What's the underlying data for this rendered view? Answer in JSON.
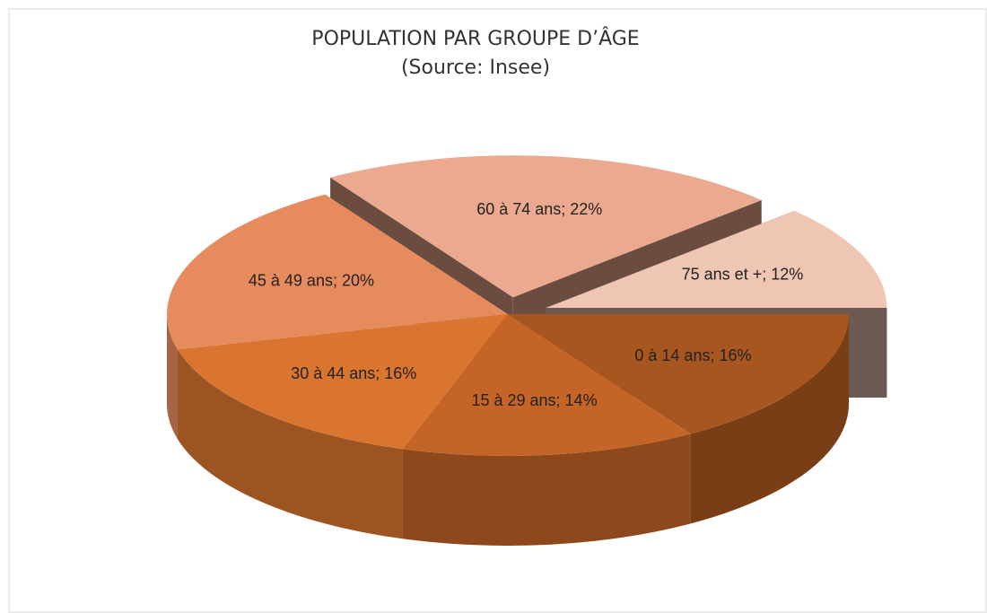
{
  "chart_data": {
    "type": "pie3d",
    "title": "POPULATION PAR GROUPE D’ÂGE",
    "subtitle": "(Source: Insee)",
    "categories": [
      "0 à 14 ans",
      "15 à 29 ans",
      "30 à 44 ans",
      "45 à 49 ans",
      "60 à 74 ans",
      "75 ans et +"
    ],
    "values": [
      16,
      14,
      16,
      20,
      22,
      12
    ],
    "value_labels": [
      "0 à 14 ans; 16%",
      "15 à 29 ans; 14%",
      "30 à 44 ans; 16%",
      "45 à 49 ans; 20%",
      "60 à 74 ans; 22%",
      "75 ans et +; 12%"
    ],
    "colors": [
      "#a8561f",
      "#c46426",
      "#da7530",
      "#e68b5e",
      "#eba98f",
      "#efc5b4"
    ],
    "explode": [
      false,
      false,
      false,
      false,
      true,
      true
    ]
  }
}
